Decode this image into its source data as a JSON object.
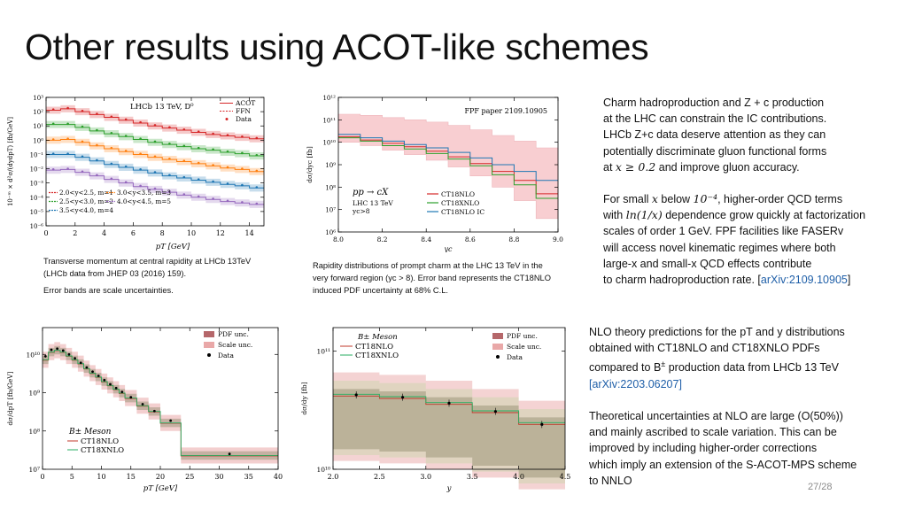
{
  "slide": {
    "title": "Other results using ACOT-like schemes",
    "page_number": "27/28"
  },
  "captions": {
    "fig1_line1": "Transverse momentum at central rapidity at LHCb 13TeV",
    "fig1_line2": "(LHCb data from JHEP 03 (2016) 159).",
    "fig1_line3": "Error bands are scale uncertainties.",
    "fig2_line1": "Rapidity distributions of prompt charm at the LHC 13 TeV in the",
    "fig2_line2": "very forward region (yc > 8). Error band represents the CT18NLO",
    "fig2_line3": "induced PDF uncertainty at 68% C.L."
  },
  "text_right_top": {
    "l1": "Charm hadroproduction and Z + c production",
    "l2": "at the LHC can constrain the IC contributions.",
    "l3": "LHCb Z+c data deserve attention as they can",
    "l4": "potentially discriminate gluon functional forms",
    "l5a": "at ",
    "l5math": "x ≥ 0.2",
    "l5b": " and improve gluon accuracy.",
    "l6a": "For small ",
    "l6x": "x",
    "l6b": " below ",
    "l6math": "10⁻⁴",
    "l6c": ", higher-order QCD terms",
    "l7a": "with ",
    "l7math": "ln(1/x)",
    "l7b": " dependence grow quickly at factorization",
    "l8": "scales of order 1 GeV. FPF facilities like FASERv",
    "l9": "will access novel kinematic regimes where both",
    "l10": "large-x and small-x QCD effects contribute",
    "l11a": "to charm hadroproduction rate. [",
    "l11link": "arXiv:2109.10905",
    "l11b": "]"
  },
  "text_right_bottom": {
    "l1": "NLO theory predictions for the pT and y distributions",
    "l2": "obtained with CT18NLO and CT18XNLO PDFs",
    "l3a": "compared to B",
    "l3sup": "±",
    "l3b": " production data from LHCb 13 TeV",
    "l4": "[arXiv:2203.06207]",
    "l5": "Theoretical uncertainties at NLO are large (O(50%))",
    "l6": "and mainly ascribed to scale variation. This can be",
    "l7": "improved by including higher-order corrections",
    "l8": "which imply an extension of the S-ACOT-MPS scheme",
    "l9": "to NNLO"
  },
  "chart_data": [
    {
      "type": "line",
      "label": "LHCb 13 TeV, D⁰",
      "xlabel": "pT [GeV]",
      "ylabel": "10⁻ᵐ × d²σ/(dydpT) [fb/GeV]",
      "xlim": [
        0,
        15
      ],
      "ylim_log10": [
        -6,
        3
      ],
      "xticks": [
        "0",
        "2",
        "4",
        "6",
        "8",
        "10",
        "12",
        "14"
      ],
      "yticks": [
        "10⁻⁶",
        "10⁻⁵",
        "10⁻⁴",
        "10⁻³",
        "10⁻²",
        "10⁻¹",
        "10⁰",
        "10¹",
        "10²",
        "10³"
      ],
      "legend": [
        "ACOT",
        "FFN",
        "Data"
      ],
      "legend_placement": "top-right",
      "bins_legend": [
        "2.0<y<2.5, m=1",
        "2.5<y<3.0, m=2",
        "3.0<y<3.5, m=3",
        "3.5<y<4.0, m=4",
        "4.0<y<4.5, m=5"
      ],
      "colors": [
        "#d62728",
        "#2ca02c",
        "#ff7f0e",
        "#1f77b4",
        "#9467bd"
      ],
      "x": [
        0.5,
        1.5,
        2.5,
        3.5,
        4.5,
        5.5,
        6.5,
        7.5,
        8.5,
        9.5,
        10.5,
        11.5,
        12.5,
        13.5,
        14.5
      ],
      "series": [
        {
          "values_log10": [
            2.1,
            2.2,
            2.0,
            1.8,
            1.6,
            1.4,
            1.2,
            1.0,
            0.85,
            0.7,
            0.55,
            0.4,
            0.3,
            0.2,
            0.1
          ]
        },
        {
          "values_log10": [
            1.1,
            1.1,
            0.9,
            0.65,
            0.45,
            0.25,
            0.05,
            -0.15,
            -0.3,
            -0.45,
            -0.6,
            -0.7,
            -0.85,
            -0.95,
            -1.1
          ]
        },
        {
          "values_log10": [
            0.0,
            0.05,
            -0.15,
            -0.4,
            -0.6,
            -0.8,
            -1.0,
            -1.2,
            -1.35,
            -1.5,
            -1.65,
            -1.8,
            -1.95,
            -2.05,
            -2.2
          ]
        },
        {
          "values_log10": [
            -1.0,
            -1.0,
            -1.2,
            -1.45,
            -1.7,
            -1.9,
            -2.1,
            -2.3,
            -2.5,
            -2.65,
            -2.8,
            -2.95,
            -3.1,
            -3.2,
            -3.35
          ]
        },
        {
          "values_log10": [
            -2.1,
            -2.05,
            -2.25,
            -2.5,
            -2.75,
            -3.0,
            -3.25,
            -3.45,
            -3.65,
            -3.85,
            -4.0,
            -4.15,
            -4.3,
            -4.4,
            -4.5
          ]
        }
      ]
    },
    {
      "type": "line",
      "annotation": "FPF paper 2109.10905",
      "process_label": "pp → cX",
      "sub_label1": "LHC 13 TeV",
      "sub_label2": "yc>8",
      "xlabel": "yc",
      "ylabel": "dσ/dyc [fb]",
      "xlim": [
        8.0,
        9.0
      ],
      "ylim_log10": [
        6,
        12
      ],
      "xticks": [
        "8.0",
        "8.2",
        "8.4",
        "8.6",
        "8.8",
        "9.0"
      ],
      "yticks": [
        "10⁶",
        "10⁷",
        "10⁸",
        "10⁹",
        "10¹⁰",
        "10¹¹",
        "10¹²"
      ],
      "legend": [
        "CT18NLO",
        "CT18XNLO",
        "CT18NLO IC"
      ],
      "legend_placement": "bottom-center",
      "colors": [
        "#d62728",
        "#2ca02c",
        "#1f77b4"
      ],
      "x_edges": [
        8.0,
        8.1,
        8.2,
        8.3,
        8.4,
        8.5,
        8.6,
        8.7,
        8.8,
        8.9,
        9.0
      ],
      "series": [
        {
          "name": "CT18NLO",
          "values_log10": [
            10.25,
            10.1,
            9.95,
            9.8,
            9.6,
            9.35,
            9.05,
            8.7,
            8.3,
            7.7
          ],
          "upper_log10": [
            11.25,
            11.2,
            11.1,
            11.0,
            10.9,
            10.75,
            10.55,
            10.3,
            10.05,
            9.75
          ],
          "lower_log10": [
            10.0,
            9.85,
            9.65,
            9.45,
            9.2,
            8.9,
            8.5,
            8.0,
            7.4,
            6.6
          ]
        },
        {
          "name": "CT18XNLO",
          "values_log10": [
            10.2,
            10.05,
            9.85,
            9.7,
            9.5,
            9.25,
            8.95,
            8.55,
            8.1,
            7.5
          ]
        },
        {
          "name": "CT18NLO IC",
          "values_log10": [
            10.35,
            10.2,
            10.05,
            9.9,
            9.75,
            9.55,
            9.3,
            9.0,
            8.7,
            8.3
          ]
        }
      ]
    },
    {
      "type": "line",
      "label": "B± Meson",
      "xlabel": "pT [GeV]",
      "ylabel": "dσ/dpT [fb/GeV]",
      "xlim": [
        0,
        40
      ],
      "ylim_log10": [
        7,
        10.7
      ],
      "xticks": [
        "0",
        "5",
        "10",
        "15",
        "20",
        "25",
        "30",
        "35",
        "40"
      ],
      "yticks": [
        "10⁷",
        "10⁸",
        "10⁹",
        "10¹⁰"
      ],
      "legend": [
        "PDF unc.",
        "Scale unc.",
        "Data"
      ],
      "legend2": [
        "CT18NLO",
        "CT18XNLO"
      ],
      "legend_placement": "top-right",
      "colors": [
        "#b5676a",
        "#e9a8a8",
        "#000000",
        "#c0392b",
        "#27ae60"
      ],
      "x_edges": [
        0,
        1,
        2,
        3,
        4,
        5,
        6,
        7,
        8,
        9,
        10,
        11,
        12,
        13,
        14,
        16,
        18,
        20,
        23.5,
        40
      ],
      "series": [
        {
          "name": "CT18NLO",
          "values_log10": [
            9.85,
            10.05,
            10.1,
            10.05,
            9.95,
            9.85,
            9.75,
            9.62,
            9.5,
            9.4,
            9.28,
            9.18,
            9.08,
            8.98,
            8.85,
            8.65,
            8.5,
            8.2,
            7.35
          ]
        },
        {
          "name": "Data",
          "x": [
            0.5,
            1.5,
            2.5,
            3.5,
            4.5,
            5.5,
            6.5,
            7.5,
            8.5,
            9.5,
            10.5,
            11.5,
            12.5,
            13.5,
            15,
            17,
            19,
            21.75,
            31.75
          ],
          "values_log10": [
            9.95,
            10.12,
            10.15,
            10.1,
            10.0,
            9.9,
            9.78,
            9.66,
            9.55,
            9.44,
            9.33,
            9.22,
            9.12,
            9.02,
            8.88,
            8.7,
            8.52,
            8.27,
            7.4
          ]
        }
      ]
    },
    {
      "type": "line",
      "label": "B± Meson",
      "xlabel": "y",
      "ylabel": "dσ/dy [fb]",
      "xlim": [
        2.0,
        4.5
      ],
      "ylim_log10": [
        10,
        11.2
      ],
      "xticks": [
        "2.0",
        "2.5",
        "3.0",
        "3.5",
        "4.0",
        "4.5"
      ],
      "yticks": [
        "10¹⁰",
        "10¹¹"
      ],
      "legend": [
        "PDF unc.",
        "Scale unc.",
        "Data"
      ],
      "legend2": [
        "CT18NLO",
        "CT18XNLO"
      ],
      "legend_placement": "top-right",
      "colors": [
        "#b5676a",
        "#e9a8a8",
        "#000000",
        "#c0392b",
        "#27ae60"
      ],
      "x_edges": [
        2.0,
        2.5,
        3.0,
        3.5,
        4.0,
        4.5
      ],
      "series": [
        {
          "name": "CT18NLO",
          "values_log10": [
            10.62,
            10.6,
            10.55,
            10.48,
            10.38
          ]
        },
        {
          "name": "Data",
          "x": [
            2.25,
            2.75,
            3.25,
            3.75,
            4.25
          ],
          "values_log10": [
            10.63,
            10.61,
            10.56,
            10.49,
            10.38
          ]
        }
      ]
    }
  ]
}
